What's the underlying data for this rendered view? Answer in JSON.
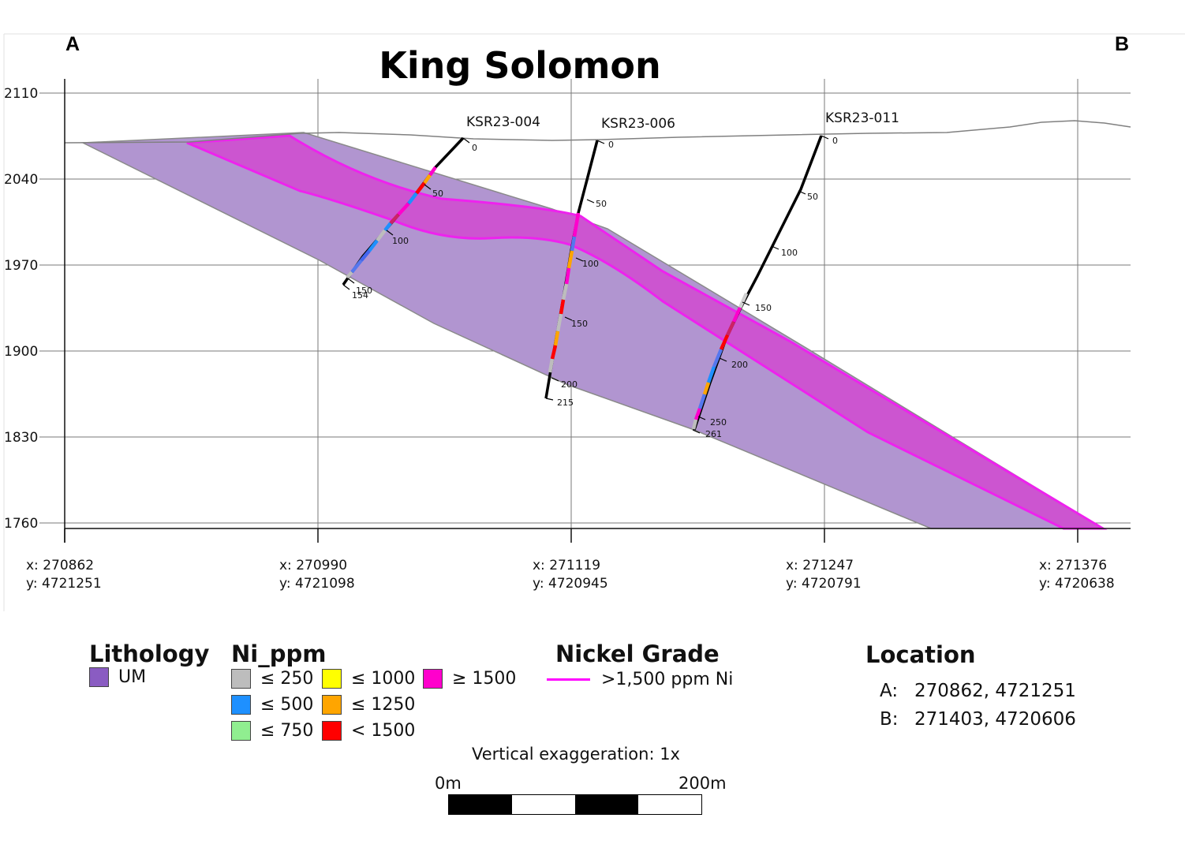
{
  "title": "King Solomon",
  "section_ends": {
    "a": "A",
    "b": "B"
  },
  "elevation_ticks": [
    "2110",
    "2040",
    "1970",
    "1900",
    "1830",
    "1760"
  ],
  "easting_ticks": [
    {
      "x": "x: 270862",
      "y": "y: 4721251"
    },
    {
      "x": "x: 270990",
      "y": "y: 4721098"
    },
    {
      "x": "x: 271119",
      "y": "y: 4720945"
    },
    {
      "x": "x: 271247",
      "y": "y: 4720791"
    },
    {
      "x": "x: 271376",
      "y": "y: 4720638"
    }
  ],
  "drillholes": [
    {
      "name": "KSR23-004",
      "depth_labels": [
        "0",
        "50",
        "100",
        "150",
        "154"
      ]
    },
    {
      "name": "KSR23-006",
      "depth_labels": [
        "0",
        "50",
        "100",
        "150",
        "200",
        "215"
      ]
    },
    {
      "name": "KSR23-011",
      "depth_labels": [
        "0",
        "50",
        "100",
        "150",
        "200",
        "250",
        "261"
      ]
    }
  ],
  "legend": {
    "lithology": {
      "title": "Lithology",
      "items": [
        {
          "label": "UM",
          "color": "#8a5cc2"
        }
      ]
    },
    "ni_ppm": {
      "title": "Ni_ppm",
      "items": [
        {
          "label": "≤ 250",
          "color": "#bdbdbd"
        },
        {
          "label": "≤ 500",
          "color": "#1e90ff"
        },
        {
          "label": "≤ 750",
          "color": "#90ee90"
        },
        {
          "label": "≤ 1000",
          "color": "#ffff00"
        },
        {
          "label": "≤ 1250",
          "color": "#ffa500"
        },
        {
          "label": "< 1500",
          "color": "#ff0000"
        },
        {
          "label": "≥ 1500",
          "color": "#ff00cc"
        }
      ]
    },
    "nickel_grade": {
      "title": "Nickel Grade",
      "label": ">1,500 ppm Ni",
      "color": "#ff00ff"
    },
    "location": {
      "title": "Location",
      "rows": [
        {
          "key": "A:",
          "value": "270862, 4721251"
        },
        {
          "key": "B:",
          "value": "271403, 4720606"
        }
      ]
    }
  },
  "vertical_exaggeration": "Vertical exaggeration: 1x",
  "scale_bar": {
    "start": "0m",
    "end": "200m"
  }
}
